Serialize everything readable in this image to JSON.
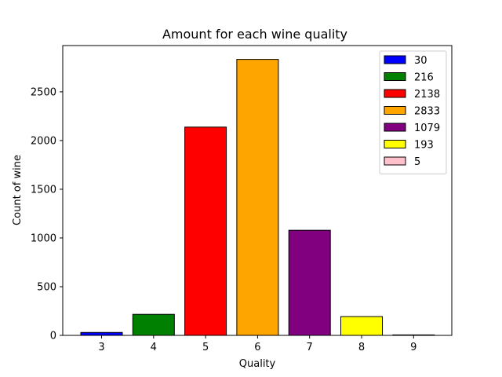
{
  "chart_data": {
    "type": "bar",
    "title": "Amount for each wine quality",
    "xlabel": "Quality",
    "ylabel": "Count of wine",
    "categories": [
      "3",
      "4",
      "5",
      "6",
      "7",
      "8",
      "9"
    ],
    "values": [
      30,
      216,
      2138,
      2833,
      1079,
      193,
      5
    ],
    "colors": [
      "#0000ff",
      "#008000",
      "#ff0000",
      "#ffa500",
      "#800080",
      "#ffff00",
      "#ffc0cb"
    ],
    "edge_color": "#000000",
    "yticks": [
      0,
      500,
      1000,
      1500,
      2000,
      2500
    ],
    "ylim": [
      0,
      2975
    ],
    "grid": false,
    "legend": {
      "placement": "top-right",
      "entries": [
        "30",
        "216",
        "2138",
        "2833",
        "1079",
        "193",
        "5"
      ]
    }
  }
}
